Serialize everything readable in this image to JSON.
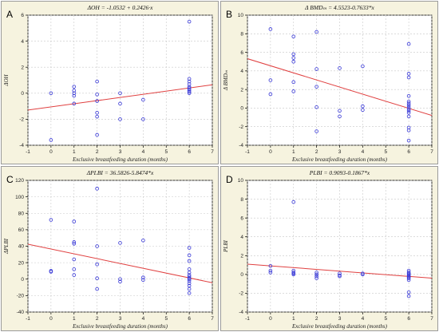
{
  "chart_data": [
    {
      "panel": "A",
      "type": "scatter",
      "title": "ΔOH = -1.0532 + 0.2426·x",
      "xlabel": "Exclusive breastfeeding duration (months)",
      "ylabel": "ΔOH",
      "xlim": [
        -1,
        7
      ],
      "ylim": [
        -4,
        6
      ],
      "xticks": [
        -1,
        0,
        1,
        2,
        3,
        4,
        5,
        6,
        7
      ],
      "yticks": [
        -4,
        -2,
        0,
        2,
        4,
        6
      ],
      "grid": true,
      "fit_line": {
        "intercept": -1.0532,
        "slope": 0.2426
      },
      "points": [
        [
          0,
          0
        ],
        [
          0,
          -3.6
        ],
        [
          1,
          0.5
        ],
        [
          1,
          0.2
        ],
        [
          1,
          0
        ],
        [
          1,
          -0.2
        ],
        [
          1,
          -0.8
        ],
        [
          2,
          0.9
        ],
        [
          2,
          -0.1
        ],
        [
          2,
          -0.6
        ],
        [
          2,
          -1.5
        ],
        [
          2,
          -1.8
        ],
        [
          2,
          -3.2
        ],
        [
          3,
          0
        ],
        [
          3,
          -0.8
        ],
        [
          3,
          -2
        ],
        [
          4,
          -0.5
        ],
        [
          4,
          -2
        ],
        [
          6,
          5.5
        ],
        [
          6,
          1.1
        ],
        [
          6,
          0.9
        ],
        [
          6,
          0.7
        ],
        [
          6,
          0.5
        ],
        [
          6,
          0.4
        ],
        [
          6,
          0.3
        ],
        [
          6,
          0.2
        ],
        [
          6,
          0.1
        ],
        [
          6,
          0
        ]
      ]
    },
    {
      "panel": "B",
      "type": "scatter",
      "title": "Δ BMDₘ = 4.5523-0.7633*x",
      "xlabel": "Exclusive breastfeeding duration (months)",
      "ylabel": "Δ BMDₘ",
      "xlim": [
        -1,
        7
      ],
      "ylim": [
        -4,
        10
      ],
      "xticks": [
        -1,
        0,
        1,
        2,
        3,
        4,
        5,
        6,
        7
      ],
      "yticks": [
        -4,
        -2,
        0,
        2,
        4,
        6,
        8,
        10
      ],
      "grid": true,
      "fit_line": {
        "intercept": 4.5523,
        "slope": -0.7633
      },
      "points": [
        [
          0,
          8.5
        ],
        [
          0,
          3
        ],
        [
          0,
          1.5
        ],
        [
          1,
          7.7
        ],
        [
          1,
          5.8
        ],
        [
          1,
          5.4
        ],
        [
          1,
          5
        ],
        [
          1,
          2.8
        ],
        [
          1,
          1.8
        ],
        [
          2,
          8.2
        ],
        [
          2,
          4.2
        ],
        [
          2,
          2.3
        ],
        [
          2,
          0.1
        ],
        [
          2,
          -2.5
        ],
        [
          3,
          4.3
        ],
        [
          3,
          -0.3
        ],
        [
          3,
          -0.9
        ],
        [
          4,
          4.5
        ],
        [
          4,
          0.2
        ],
        [
          4,
          -0.2
        ],
        [
          6,
          6.9
        ],
        [
          6,
          3.7
        ],
        [
          6,
          3.3
        ],
        [
          6,
          1.3
        ],
        [
          6,
          0.7
        ],
        [
          6,
          0.5
        ],
        [
          6,
          0.3
        ],
        [
          6,
          0.1
        ],
        [
          6,
          -0.1
        ],
        [
          6,
          -0.3
        ],
        [
          6,
          -0.5
        ],
        [
          6,
          -0.9
        ],
        [
          6,
          -2.1
        ],
        [
          6,
          -2.4
        ],
        [
          6,
          -3.5
        ]
      ]
    },
    {
      "panel": "C",
      "type": "scatter",
      "title": "ΔPLBI = 36.5826-5.8474*x",
      "xlabel": "Exclusive breastfeeding duration (months)",
      "ylabel": "ΔPLBI",
      "xlim": [
        -1,
        7
      ],
      "ylim": [
        -40,
        120
      ],
      "xticks": [
        -1,
        0,
        1,
        2,
        3,
        4,
        5,
        6,
        7
      ],
      "yticks": [
        -40,
        -20,
        0,
        20,
        40,
        60,
        80,
        100,
        120
      ],
      "grid": true,
      "fit_line": {
        "intercept": 36.5826,
        "slope": -5.8474
      },
      "points": [
        [
          0,
          72
        ],
        [
          0,
          10
        ],
        [
          0,
          9
        ],
        [
          1,
          70
        ],
        [
          1,
          45
        ],
        [
          1,
          43
        ],
        [
          1,
          24
        ],
        [
          1,
          12
        ],
        [
          1,
          5
        ],
        [
          2,
          110
        ],
        [
          2,
          40
        ],
        [
          2,
          18
        ],
        [
          2,
          1
        ],
        [
          2,
          -12
        ],
        [
          3,
          44
        ],
        [
          3,
          0
        ],
        [
          3,
          -3
        ],
        [
          4,
          47
        ],
        [
          4,
          2
        ],
        [
          4,
          -1
        ],
        [
          6,
          38
        ],
        [
          6,
          29
        ],
        [
          6,
          22
        ],
        [
          6,
          12
        ],
        [
          6,
          8
        ],
        [
          6,
          5
        ],
        [
          6,
          3
        ],
        [
          6,
          1
        ],
        [
          6,
          0
        ],
        [
          6,
          -2
        ],
        [
          6,
          -5
        ],
        [
          6,
          -8
        ],
        [
          6,
          -12
        ],
        [
          6,
          -17
        ]
      ]
    },
    {
      "panel": "D",
      "type": "scatter",
      "title": "PLBI = 0.9093-0.1867*x",
      "xlabel": "Exclusive breastfeeding duration (months)",
      "ylabel": "PLBI",
      "xlim": [
        -1,
        7
      ],
      "ylim": [
        -4,
        10
      ],
      "xticks": [
        -1,
        0,
        1,
        2,
        3,
        4,
        5,
        6,
        7
      ],
      "yticks": [
        -4,
        -2,
        0,
        2,
        4,
        6,
        8,
        10
      ],
      "grid": true,
      "fit_line": {
        "intercept": 0.9093,
        "slope": -0.1867
      },
      "points": [
        [
          0,
          0.9
        ],
        [
          0,
          0.4
        ],
        [
          0,
          0.2
        ],
        [
          1,
          7.7
        ],
        [
          1,
          0.4
        ],
        [
          1,
          0.2
        ],
        [
          1,
          0.1
        ],
        [
          1,
          0
        ],
        [
          2,
          0.2
        ],
        [
          2,
          0
        ],
        [
          2,
          -0.2
        ],
        [
          2,
          -0.4
        ],
        [
          3,
          0.1
        ],
        [
          3,
          -0.1
        ],
        [
          3,
          -0.2
        ],
        [
          4,
          0.1
        ],
        [
          4,
          0
        ],
        [
          6,
          0.4
        ],
        [
          6,
          0.2
        ],
        [
          6,
          0.1
        ],
        [
          6,
          0
        ],
        [
          6,
          -0.1
        ],
        [
          6,
          -0.2
        ],
        [
          6,
          -0.3
        ],
        [
          6,
          -0.4
        ],
        [
          6,
          -0.6
        ],
        [
          6,
          -1.9
        ],
        [
          6,
          -2.3
        ]
      ]
    }
  ],
  "colors": {
    "points": "#3a3ad8",
    "fit_line": "#e04040",
    "panel_background": "#f6f3df",
    "plot_background": "#ffffff"
  }
}
